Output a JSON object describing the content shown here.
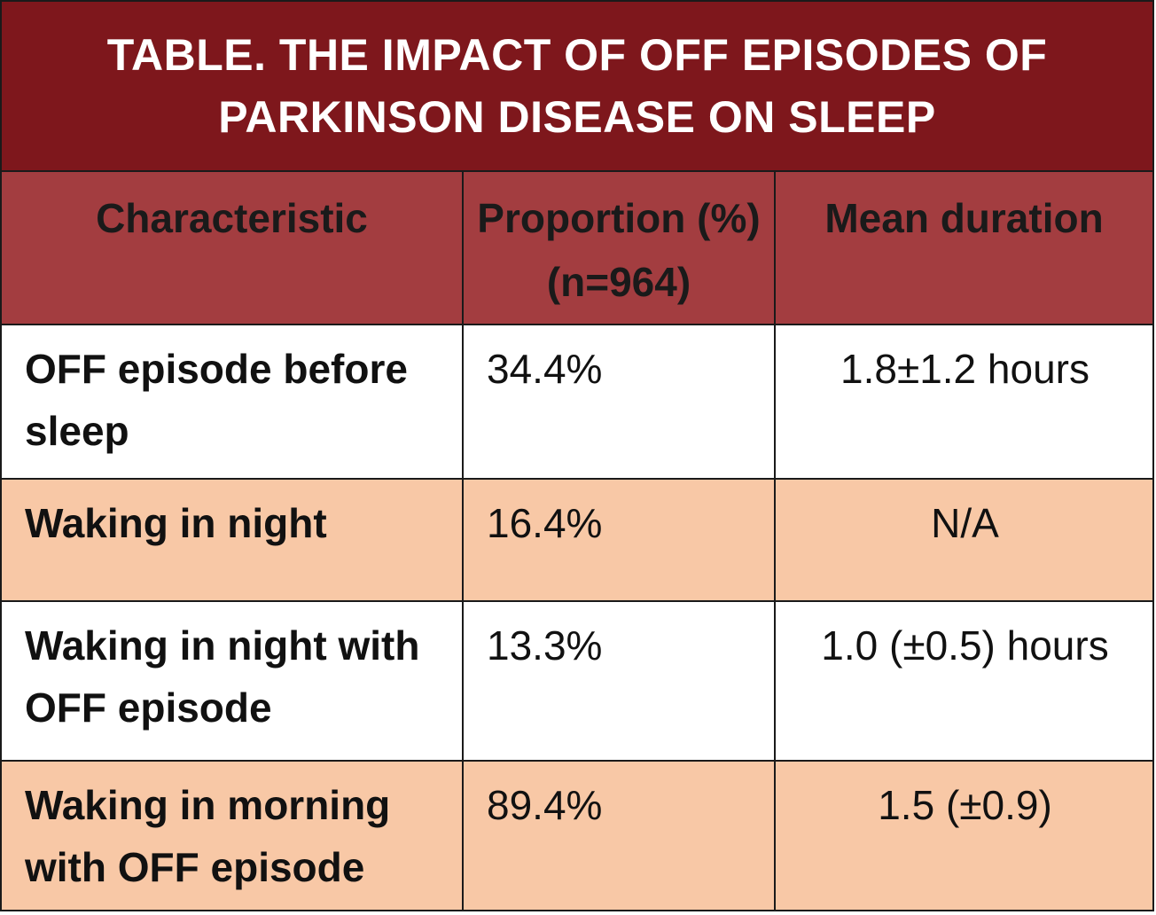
{
  "table": {
    "title": "TABLE. THE IMPACT OF OFF EPISODES OF PARKINSON DISEASE ON SLEEP",
    "headers": {
      "characteristic": "Characteristic",
      "proportion": "Proportion (%) (n=964)",
      "mean_duration": "Mean duration"
    },
    "rows": [
      {
        "characteristic": "OFF episode before sleep",
        "proportion": "34.4%",
        "mean_duration": "1.8±1.2 hours"
      },
      {
        "characteristic": "Waking in night",
        "proportion": "16.4%",
        "mean_duration": "N/A"
      },
      {
        "characteristic": "Waking in night with OFF episode",
        "proportion": "13.3%",
        "mean_duration": "1.0 (±0.5) hours"
      },
      {
        "characteristic": "Waking in morning with OFF episode",
        "proportion": "89.4%",
        "mean_duration": "1.5 (±0.9)"
      }
    ],
    "colors": {
      "title_background": "#7e171c",
      "header_background": "#a33d40",
      "row_alt_background": "#f8c8a6",
      "row_background": "#ffffff",
      "title_text": "#ffffff"
    }
  }
}
